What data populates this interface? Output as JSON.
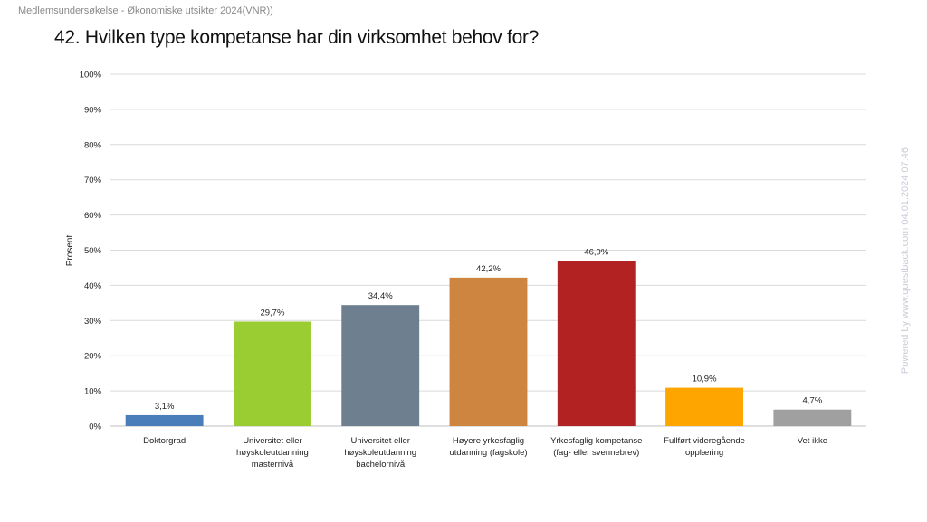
{
  "header": {
    "text": "Medlemsundersøkelse - Økonomiske utsikter 2024(VNR))"
  },
  "watermark": {
    "text": "Powered by www.questback.com    04.01.2024 07:46"
  },
  "chart_data": {
    "type": "bar",
    "title": "42. Hvilken type kompetanse har din virksomhet behov for?",
    "ylabel": "Prosent",
    "xlabel": "",
    "ylim": [
      0,
      100
    ],
    "ytick_step": 10,
    "ytick_suffix": "%",
    "grid": true,
    "legend": "none",
    "categories": [
      [
        "Doktorgrad"
      ],
      [
        "Universitet eller",
        "høyskoleutdanning",
        "masternivå"
      ],
      [
        "Universitet eller",
        "høyskoleutdanning",
        "bachelornivå"
      ],
      [
        "Høyere yrkesfaglig",
        "utdanning (fagskole)"
      ],
      [
        "Yrkesfaglig kompetanse",
        "(fag- eller svennebrev)"
      ],
      [
        "Fullført videregående",
        "opplæring"
      ],
      [
        "Vet ikke"
      ]
    ],
    "values": [
      3.1,
      29.7,
      34.4,
      42.2,
      46.9,
      10.9,
      4.7
    ],
    "value_labels": [
      "3,1%",
      "29,7%",
      "34,4%",
      "42,2%",
      "46,9%",
      "10,9%",
      "4,7%"
    ],
    "colors": [
      "#4a7ebb",
      "#9acd32",
      "#6e7f8f",
      "#cd853f",
      "#b22222",
      "#ffa500",
      "#a0a0a0"
    ]
  }
}
